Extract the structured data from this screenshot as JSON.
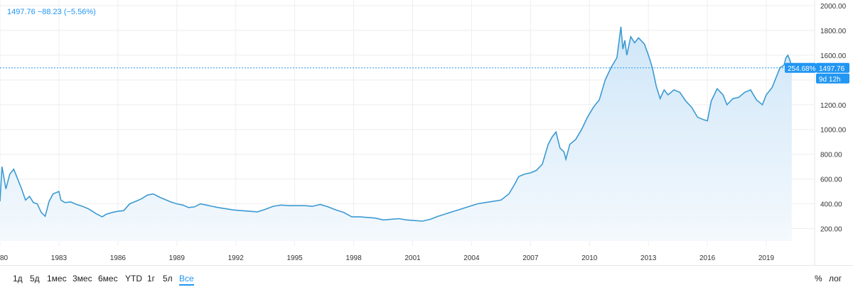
{
  "header": {
    "last_price": "1497.76",
    "change": "−88.23",
    "change_pct": "(−5.56%)"
  },
  "price_tags": {
    "pct_label": "254.68%",
    "price_label": "1497.76",
    "countdown": "9d 12h"
  },
  "range_buttons": [
    "1д",
    "5д",
    "1мес",
    "3мес",
    "6мес",
    "YTD",
    "1г",
    "5л",
    "Все"
  ],
  "active_range": "Все",
  "scale_toggles": {
    "percent": "%",
    "log": "лог"
  },
  "colors": {
    "line": "#3c9ad2",
    "area_top": "#cfe6f8",
    "area_bottom": "#f4f9fd",
    "accent": "#2196f3",
    "grid": "#eeeeee",
    "dashed_last": "#2196f3"
  },
  "chart_data": {
    "type": "area",
    "y_ticks": [
      "2000.00",
      "1800.00",
      "1600.00",
      "1400.00",
      "1200.00",
      "1000.00",
      "800.00",
      "600.00",
      "400.00",
      "200.00"
    ],
    "x_ticks": [
      "1980",
      "1983",
      "1986",
      "1989",
      "1992",
      "1995",
      "1998",
      "2001",
      "2004",
      "2007",
      "2010",
      "2013",
      "2016",
      "2019"
    ],
    "ylim": [
      100,
      2000
    ],
    "xlim": [
      1980.0,
      2020.7
    ],
    "last_value": 1497.76,
    "grid": true,
    "series": [
      {
        "x": [
          1980.0,
          1980.1,
          1980.3,
          1980.5,
          1980.7,
          1980.9,
          1981.1,
          1981.3,
          1981.5,
          1981.7,
          1981.9,
          1982.1,
          1982.3,
          1982.5,
          1982.7,
          1983.0,
          1983.1,
          1983.3,
          1983.6,
          1983.9,
          1984.2,
          1984.5,
          1984.9,
          1985.2,
          1985.4,
          1985.7,
          1986.0,
          1986.3,
          1986.6,
          1986.9,
          1987.2,
          1987.5,
          1987.8,
          1988.1,
          1988.4,
          1988.7,
          1989.0,
          1989.3,
          1989.6,
          1989.9,
          1990.2,
          1990.5,
          1990.8,
          1991.1,
          1991.5,
          1991.9,
          1992.3,
          1992.7,
          1993.1,
          1993.5,
          1993.9,
          1994.3,
          1994.7,
          1995.1,
          1995.5,
          1995.9,
          1996.3,
          1996.7,
          1997.1,
          1997.5,
          1997.9,
          1998.3,
          1998.7,
          1999.1,
          1999.5,
          1999.9,
          2000.3,
          2000.7,
          2001.1,
          2001.5,
          2001.9,
          2002.3,
          2002.7,
          2003.1,
          2003.5,
          2003.9,
          2004.3,
          2004.7,
          2005.1,
          2005.5,
          2005.9,
          2006.2,
          2006.4,
          2006.7,
          2007.0,
          2007.3,
          2007.6,
          2007.9,
          2008.1,
          2008.3,
          2008.5,
          2008.7,
          2008.8,
          2009.0,
          2009.3,
          2009.6,
          2009.9,
          2010.2,
          2010.5,
          2010.8,
          2011.1,
          2011.4,
          2011.6,
          2011.7,
          2011.8,
          2011.9,
          2012.1,
          2012.3,
          2012.5,
          2012.8,
          2013.0,
          2013.2,
          2013.4,
          2013.6,
          2013.8,
          2014.0,
          2014.3,
          2014.6,
          2014.9,
          2015.2,
          2015.5,
          2015.8,
          2016.0,
          2016.2,
          2016.5,
          2016.8,
          2017.0,
          2017.3,
          2017.6,
          2017.9,
          2018.2,
          2018.5,
          2018.8,
          2019.0,
          2019.3,
          2019.5,
          2019.7,
          2019.9,
          2020.0,
          2020.1,
          2020.2,
          2020.3
        ],
        "values": [
          420,
          700,
          520,
          640,
          680,
          600,
          520,
          430,
          460,
          410,
          400,
          330,
          300,
          420,
          480,
          500,
          430,
          410,
          415,
          395,
          380,
          360,
          320,
          295,
          315,
          330,
          340,
          345,
          400,
          420,
          440,
          470,
          480,
          455,
          435,
          415,
          400,
          390,
          370,
          375,
          400,
          390,
          380,
          370,
          360,
          350,
          345,
          340,
          335,
          355,
          380,
          390,
          385,
          385,
          385,
          380,
          395,
          375,
          350,
          330,
          295,
          295,
          290,
          285,
          270,
          275,
          280,
          270,
          265,
          260,
          275,
          300,
          320,
          340,
          360,
          380,
          400,
          410,
          420,
          430,
          480,
          560,
          620,
          640,
          650,
          670,
          720,
          880,
          940,
          980,
          850,
          820,
          760,
          880,
          920,
          1000,
          1100,
          1180,
          1240,
          1400,
          1500,
          1580,
          1830,
          1650,
          1720,
          1600,
          1750,
          1700,
          1740,
          1690,
          1600,
          1500,
          1350,
          1250,
          1320,
          1280,
          1320,
          1300,
          1230,
          1180,
          1100,
          1080,
          1070,
          1230,
          1330,
          1280,
          1200,
          1250,
          1260,
          1300,
          1320,
          1240,
          1200,
          1280,
          1340,
          1420,
          1500,
          1520,
          1580,
          1600,
          1560,
          1497.76
        ]
      }
    ]
  }
}
